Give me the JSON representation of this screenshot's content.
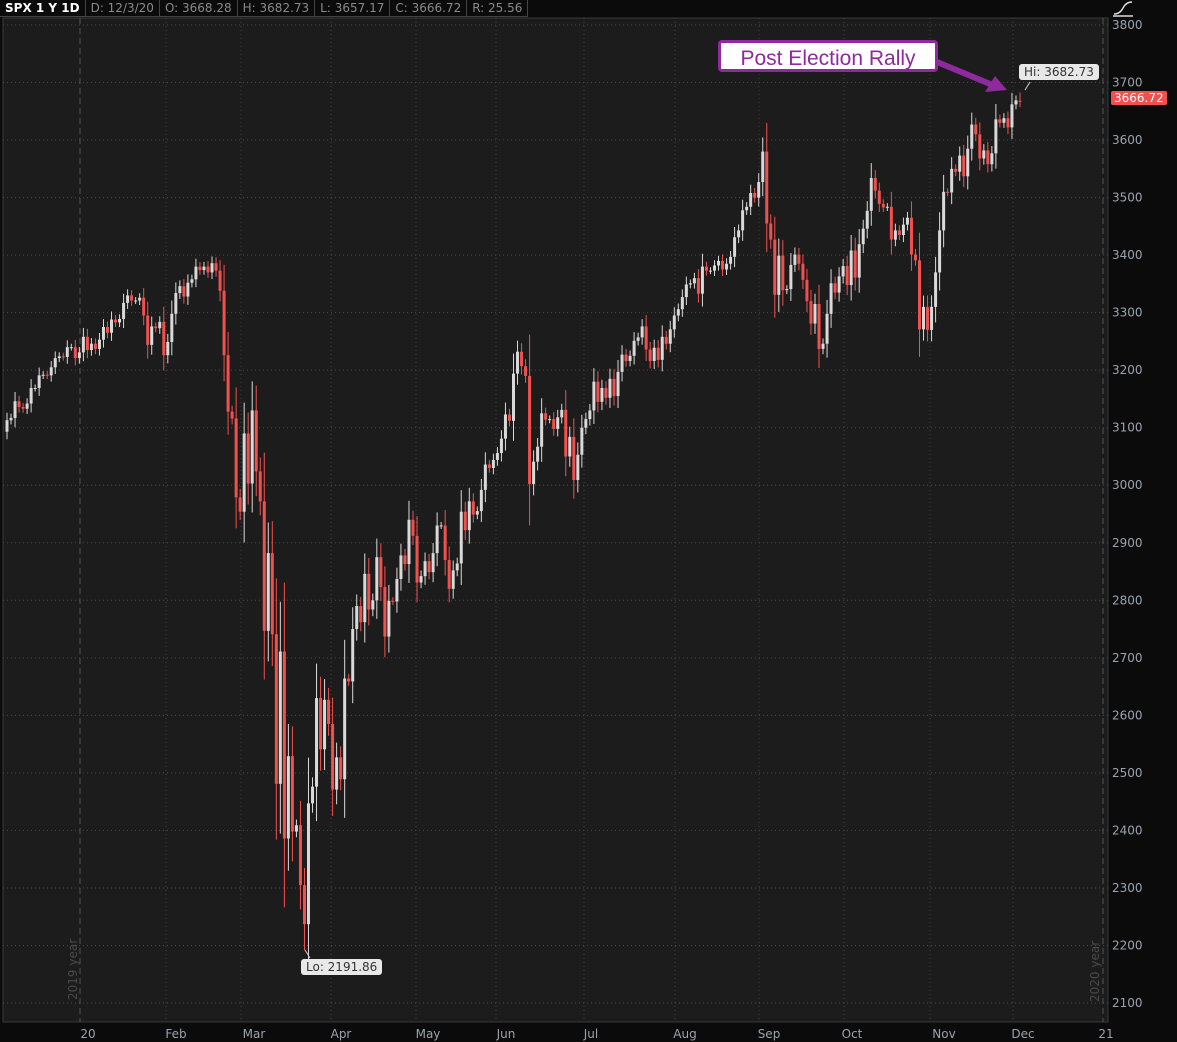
{
  "header": {
    "symbol": "SPX 1 Y 1D",
    "date": "D: 12/3/20",
    "open": "O: 3668.28",
    "high": "H: 3682.73",
    "low": "L: 3657.17",
    "close": "C: 3666.72",
    "range": "R: 25.56"
  },
  "annotation": "Post Election Rally",
  "hi_label": "Hi: 3682.73",
  "lo_label": "Lo: 2191.86",
  "last_price": "3666.72",
  "year_labels": [
    "2019 year",
    "2020 year"
  ],
  "colors": {
    "up": "#d9d9d9",
    "down": "#f0514f",
    "annotation": "#8e2a9e",
    "background": "#1c1c1c"
  },
  "chart_data": {
    "type": "candlestick",
    "title": "SPX 1 Y 1D",
    "ylim": [
      2100,
      3800
    ],
    "yticks": [
      2100,
      2200,
      2300,
      2400,
      2500,
      2600,
      2700,
      2800,
      2900,
      3000,
      3100,
      3200,
      3300,
      3400,
      3500,
      3600,
      3700,
      3800
    ],
    "xticks": [
      "20",
      "Feb",
      "Mar",
      "Apr",
      "May",
      "Jun",
      "Jul",
      "Aug",
      "Sep",
      "Oct",
      "Nov",
      "Dec",
      "21"
    ],
    "grid": true,
    "last_ohlc": {
      "open": 3668.28,
      "high": 3682.73,
      "low": 3657.17,
      "close": 3666.72
    },
    "period_low": 2191.86,
    "period_high": 3682.73,
    "closes": [
      3113,
      3117,
      3146,
      3136,
      3133,
      3142,
      3169,
      3169,
      3191,
      3192,
      3191,
      3205,
      3221,
      3224,
      3223,
      3240,
      3240,
      3221,
      3231,
      3258,
      3235,
      3246,
      3237,
      3253,
      3275,
      3265,
      3288,
      3283,
      3289,
      3317,
      3330,
      3321,
      3321,
      3326,
      3295,
      3244,
      3276,
      3273,
      3284,
      3226,
      3249,
      3298,
      3334,
      3346,
      3328,
      3352,
      3358,
      3380,
      3374,
      3380,
      3370,
      3386,
      3373,
      3338,
      3226,
      3128,
      3116,
      2979,
      2954,
      3090,
      3003,
      3130,
      3024,
      2972,
      2747,
      2882,
      2741,
      2481,
      2711,
      2386,
      2529,
      2398,
      2409,
      2305,
      2237,
      2447,
      2476,
      2630,
      2541,
      2627,
      2585,
      2471,
      2527,
      2489,
      2664,
      2659,
      2750,
      2790,
      2762,
      2846,
      2784,
      2800,
      2875,
      2823,
      2737,
      2799,
      2798,
      2837,
      2878,
      2863,
      2940,
      2912,
      2831,
      2842,
      2868,
      2849,
      2882,
      2930,
      2930,
      2870,
      2820,
      2852,
      2864,
      2954,
      2922,
      2972,
      2949,
      2955,
      2992,
      3036,
      3030,
      3044,
      3056,
      3081,
      3123,
      3112,
      3194,
      3232,
      3207,
      3190,
      3002,
      3041,
      3067,
      3125,
      3114,
      3115,
      3098,
      3118,
      3131,
      3050,
      3084,
      3009,
      3053,
      3100,
      3115,
      3130,
      3180,
      3145,
      3169,
      3152,
      3185,
      3155,
      3197,
      3227,
      3216,
      3225,
      3251,
      3257,
      3276,
      3236,
      3216,
      3239,
      3218,
      3258,
      3246,
      3271,
      3295,
      3306,
      3327,
      3349,
      3351,
      3360,
      3333,
      3380,
      3373,
      3373,
      3382,
      3390,
      3375,
      3385,
      3397,
      3431,
      3443,
      3478,
      3484,
      3508,
      3500,
      3527,
      3580,
      3455,
      3427,
      3331,
      3399,
      3339,
      3341,
      3383,
      3401,
      3385,
      3357,
      3320,
      3281,
      3315,
      3237,
      3246,
      3298,
      3351,
      3335,
      3363,
      3381,
      3348,
      3408,
      3361,
      3419,
      3446,
      3477,
      3534,
      3512,
      3489,
      3483,
      3484,
      3427,
      3443,
      3435,
      3453,
      3465,
      3401,
      3391,
      3271,
      3310,
      3270,
      3310,
      3370,
      3443,
      3510,
      3509,
      3550,
      3545,
      3573,
      3537,
      3585,
      3627,
      3610,
      3568,
      3582,
      3558,
      3577,
      3636,
      3630,
      3638,
      3622,
      3662,
      3669,
      3666.72
    ]
  }
}
